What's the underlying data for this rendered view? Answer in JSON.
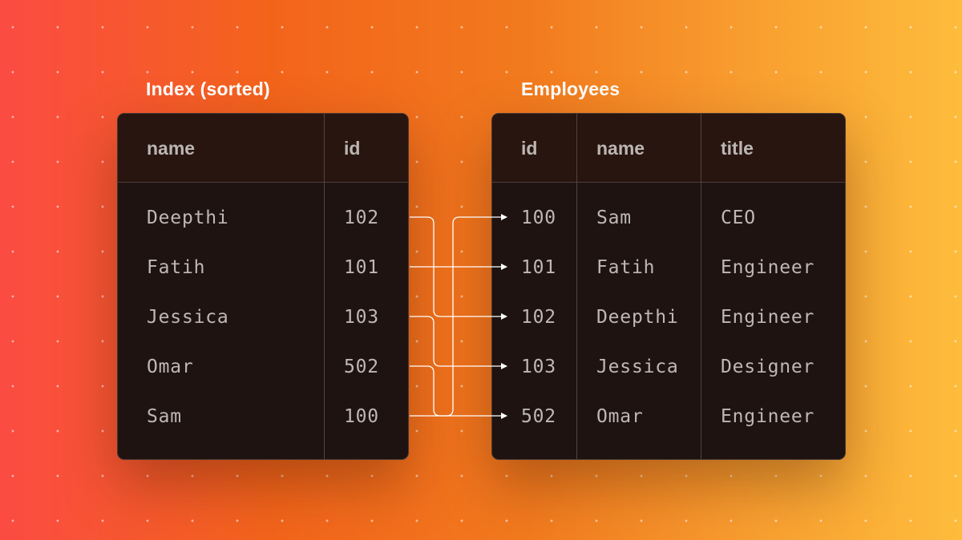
{
  "index_table": {
    "title": "Index (sorted)",
    "columns": [
      "name",
      "id"
    ],
    "rows": [
      [
        "Deepthi",
        "102"
      ],
      [
        "Fatih",
        "101"
      ],
      [
        "Jessica",
        "103"
      ],
      [
        "Omar",
        "502"
      ],
      [
        "Sam",
        "100"
      ]
    ]
  },
  "employees_table": {
    "title": "Employees",
    "columns": [
      "id",
      "name",
      "title"
    ],
    "rows": [
      [
        "100",
        "Sam",
        "CEO"
      ],
      [
        "101",
        "Fatih",
        "Engineer"
      ],
      [
        "102",
        "Deepthi",
        "Engineer"
      ],
      [
        "103",
        "Jessica",
        "Designer"
      ],
      [
        "502",
        "Omar",
        "Engineer"
      ]
    ]
  },
  "pointers": [
    {
      "from_row": 0,
      "to_row": 2
    },
    {
      "from_row": 1,
      "to_row": 1
    },
    {
      "from_row": 2,
      "to_row": 3
    },
    {
      "from_row": 3,
      "to_row": 4
    },
    {
      "from_row": 4,
      "to_row": 0
    }
  ],
  "colors": {
    "background_start": "#fb4b43",
    "background_end": "#fdbc3c",
    "table_bg": "#1e1310",
    "text": "#bfb8b4",
    "arrow": "#ffffff"
  }
}
